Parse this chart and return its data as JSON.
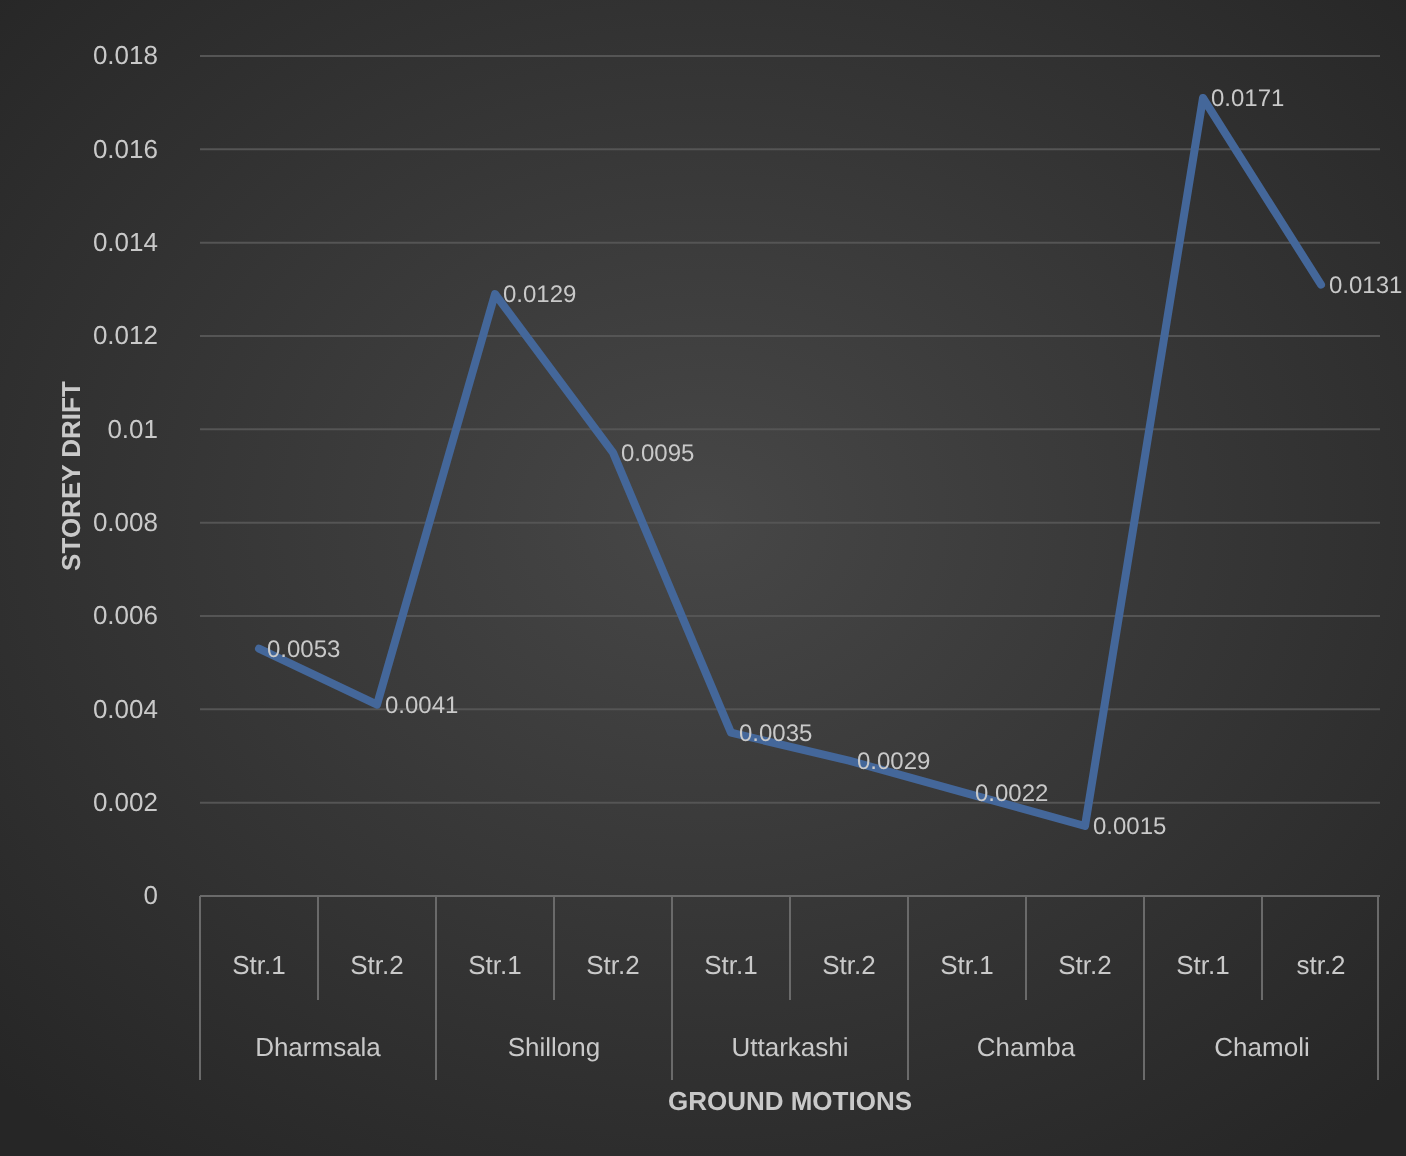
{
  "chart_data": {
    "type": "line",
    "xlabel": "GROUND MOTIONS",
    "ylabel": "STOREY DRIFT",
    "categories": [
      "Str.1",
      "Str.2",
      "Str.1",
      "Str.2",
      "Str.1",
      "Str.2",
      "Str.1",
      "Str.2",
      "Str.1",
      "str.2"
    ],
    "annotations": [
      "Dharmsala",
      "Shillong",
      "Uttarkashi",
      "Chamba",
      "Chamoli"
    ],
    "series": [
      {
        "color": "#44679a",
        "values": [
          0.0053,
          0.0041,
          0.0129,
          0.0095,
          0.0035,
          0.0029,
          0.0022,
          0.0015,
          0.0171,
          0.0131
        ]
      }
    ],
    "ylim": [
      0,
      0.018
    ],
    "yticks": [
      0,
      0.002,
      0.004,
      0.006,
      0.008,
      0.01,
      0.012,
      0.014,
      0.016,
      0.018
    ],
    "grid": "y",
    "data_labels": true,
    "marker": "none",
    "line_style": "solid"
  }
}
